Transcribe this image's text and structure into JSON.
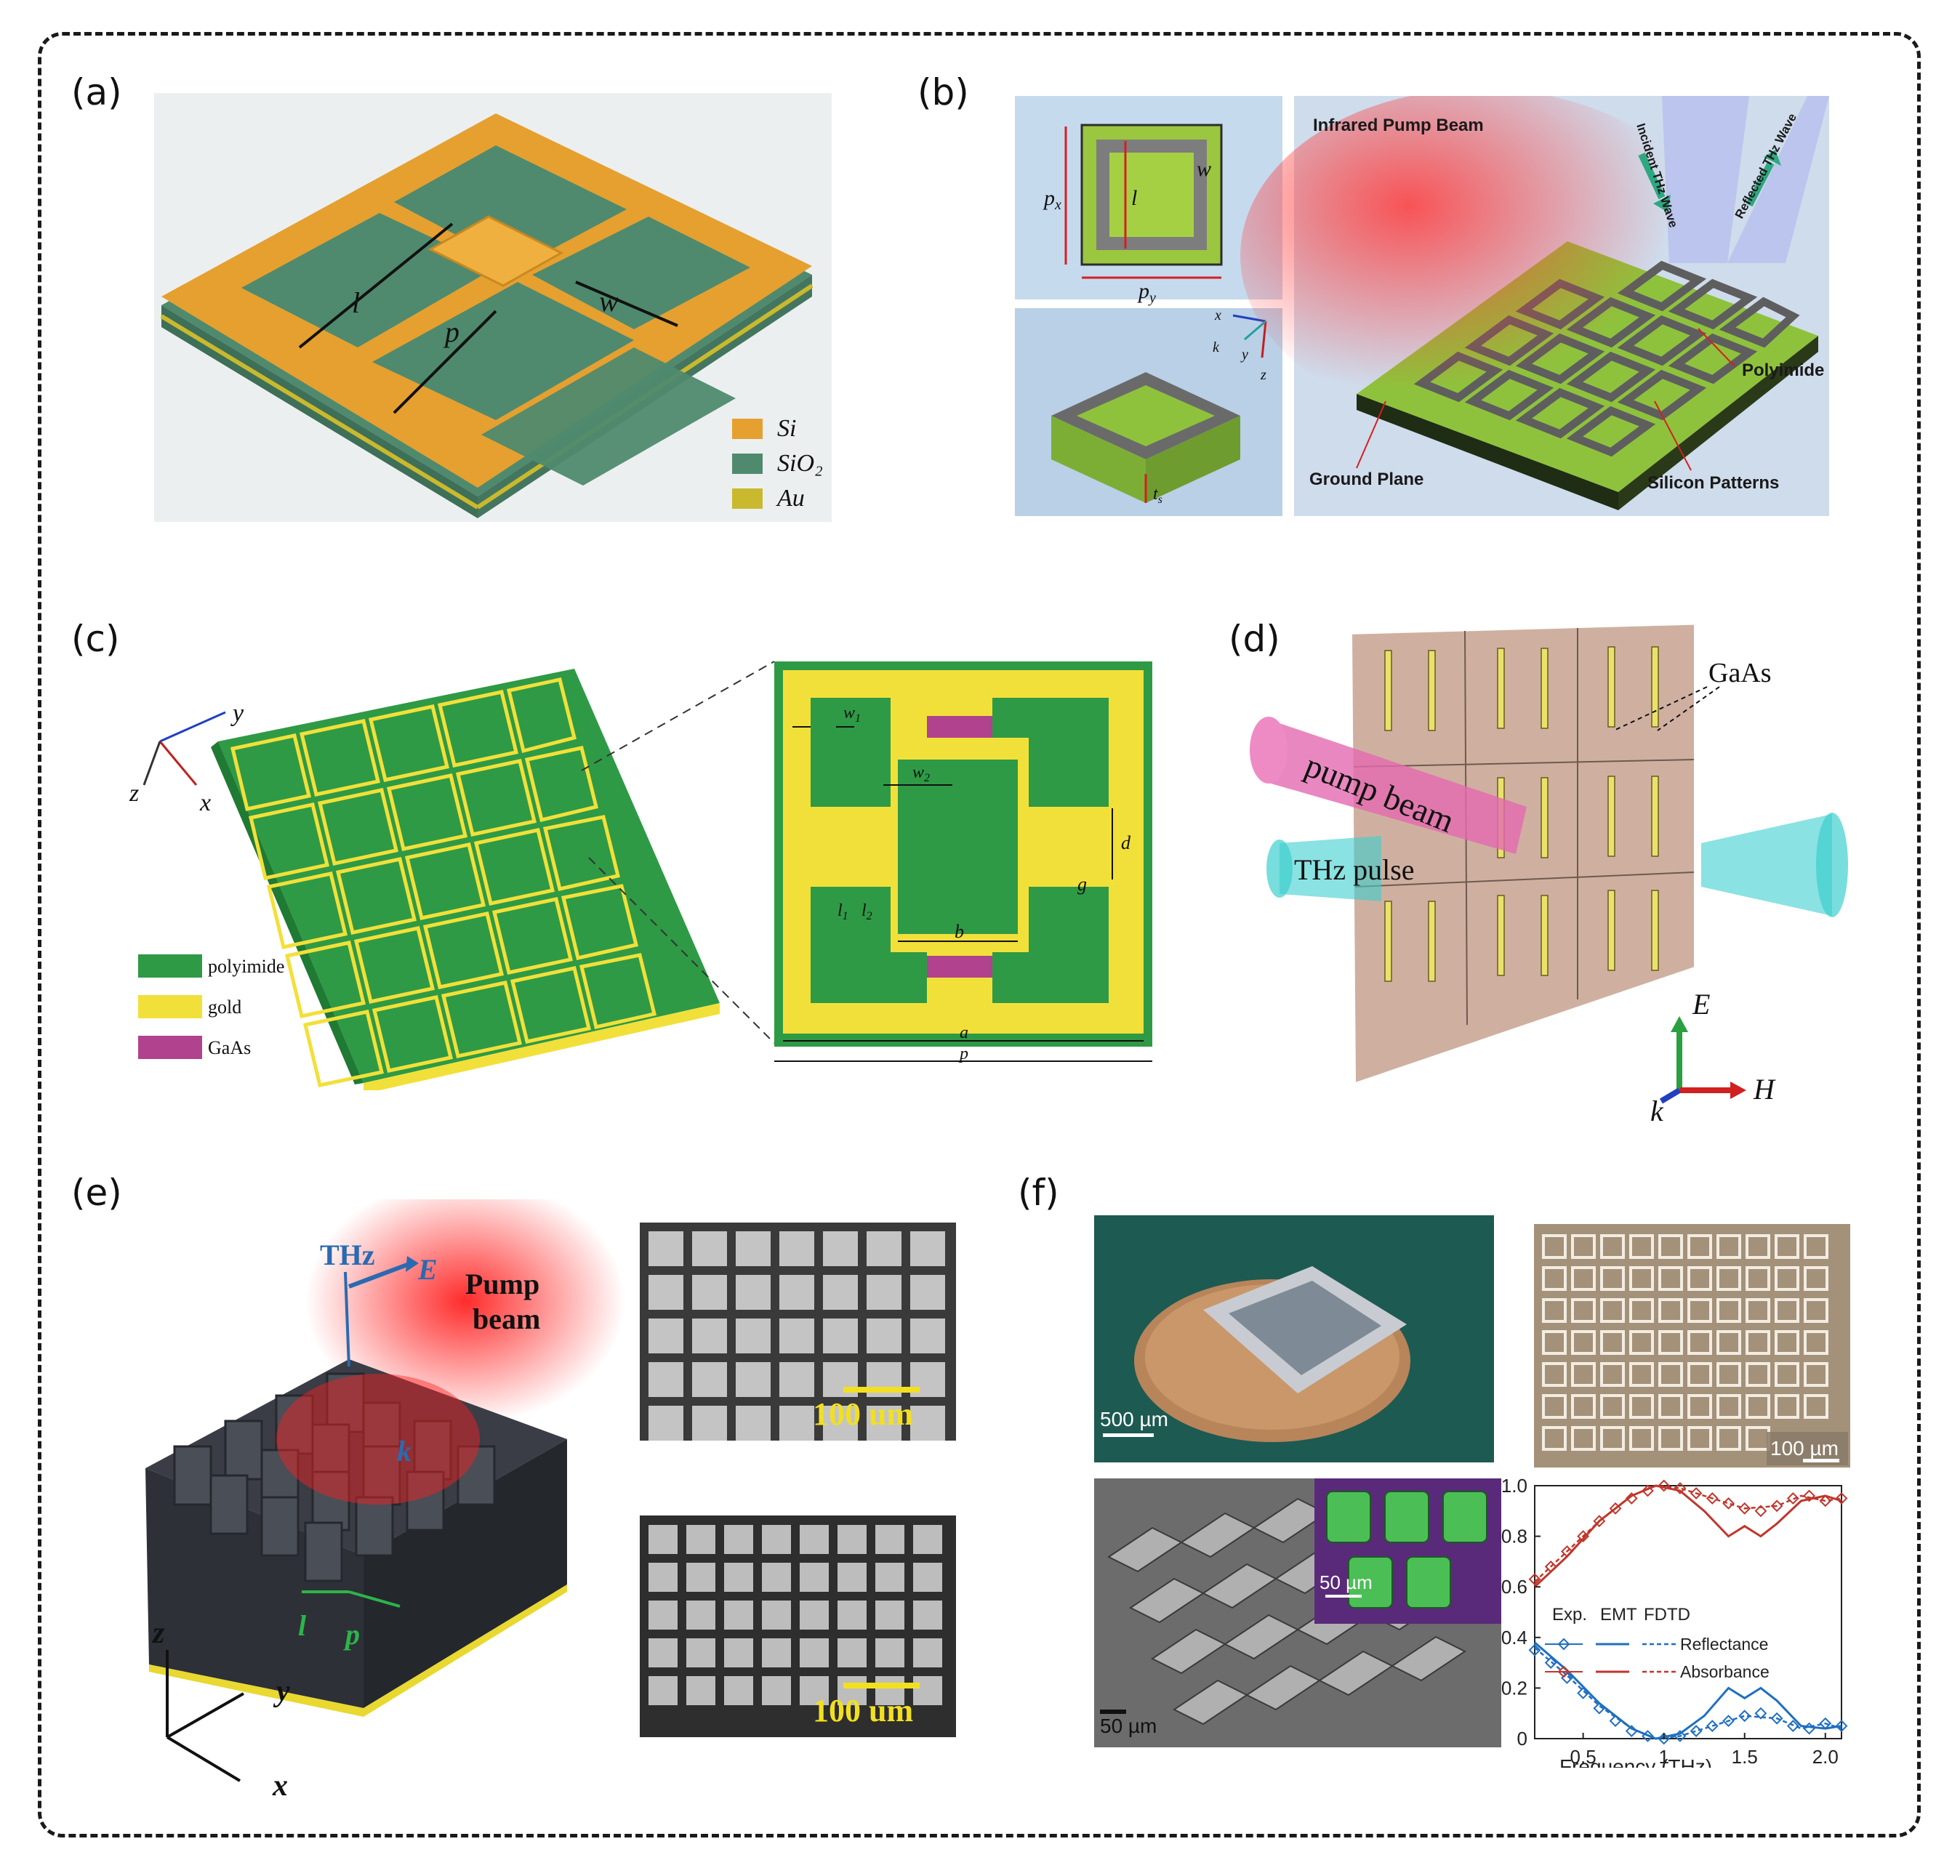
{
  "panels": {
    "a": {
      "label": "(a)",
      "dims": [
        "l",
        "p",
        "w"
      ],
      "legend": [
        {
          "name": "Si",
          "color": "#e5a030"
        },
        {
          "name": "SiO₂",
          "color": "#4f8a6e"
        },
        {
          "name": "Au",
          "color": "#c9b92e"
        }
      ]
    },
    "b": {
      "label": "(b)",
      "unit_dims": {
        "px": "p",
        "px_sub": "x",
        "py": "p",
        "py_sub": "y",
        "l": "l",
        "w": "w"
      },
      "axes": {
        "x": "x",
        "y": "y",
        "z": "z",
        "k": "k",
        "ts": "t",
        "ts_sub": "s"
      },
      "texts": {
        "pump": "Infrared Pump Beam",
        "incident": "Incident THz Wave",
        "reflected": "Reflected THz Wave",
        "polyimide": "Polyimide",
        "ground": "Ground Plane",
        "silicon": "Silicon Patterns"
      }
    },
    "c": {
      "label": "(c)",
      "axes": {
        "x": "x",
        "y": "y",
        "z": "z"
      },
      "legend": [
        {
          "name": "polyimide",
          "color": "#2e9a45"
        },
        {
          "name": "gold",
          "color": "#f2e03a"
        },
        {
          "name": "GaAs",
          "color": "#b0428e"
        }
      ],
      "dims": {
        "w1": "w",
        "w1_sub": "1",
        "w2": "w",
        "w2_sub": "2",
        "l1": "l",
        "l1_sub": "1",
        "l2": "l",
        "l2_sub": "2",
        "d": "d",
        "g": "g",
        "b": "b",
        "a": "a",
        "p": "p"
      }
    },
    "d": {
      "label": "(d)",
      "texts": {
        "gaas": "GaAs",
        "pump": "pump beam",
        "thz": "THz pulse",
        "E": "E",
        "H": "H",
        "k": "k"
      }
    },
    "e": {
      "label": "(e)",
      "texts": {
        "thz": "THz",
        "E": "E",
        "pump_line1": "Pump",
        "pump_line2": "beam",
        "k": "k",
        "l": "l",
        "p": "p",
        "z": "z",
        "y": "y",
        "x": "x"
      },
      "scalebars": [
        "100 um",
        "100 um"
      ]
    },
    "f": {
      "label": "(f)",
      "scalebars": [
        "500 µm",
        "100 µm",
        "50 µm",
        "50 µm"
      ],
      "chart_data": {
        "type": "line",
        "xlabel": "Frequency (THz)",
        "ylabel": "",
        "xlim": [
          0.2,
          2.1
        ],
        "ylim": [
          0,
          1.0
        ],
        "xticks": [
          "0.5",
          "1",
          "1.5",
          "2.0"
        ],
        "yticks": [
          "0",
          "0.2",
          "0.4",
          "0.6",
          "0.8",
          "1.0"
        ],
        "legend_header": [
          "Exp.",
          "EMT",
          "FDTD"
        ],
        "series": [
          {
            "name": "Reflectance",
            "color": "#1f6fc0",
            "emt": [
              [
                0.2,
                0.38
              ],
              [
                0.4,
                0.27
              ],
              [
                0.6,
                0.14
              ],
              [
                0.8,
                0.04
              ],
              [
                0.95,
                0.0
              ],
              [
                1.1,
                0.02
              ],
              [
                1.25,
                0.09
              ],
              [
                1.4,
                0.2
              ],
              [
                1.5,
                0.16
              ],
              [
                1.6,
                0.2
              ],
              [
                1.7,
                0.15
              ],
              [
                1.85,
                0.05
              ],
              [
                2.0,
                0.04
              ],
              [
                2.1,
                0.05
              ]
            ],
            "fdtd": [
              [
                0.2,
                0.36
              ],
              [
                0.4,
                0.25
              ],
              [
                0.6,
                0.13
              ],
              [
                0.8,
                0.04
              ],
              [
                0.95,
                0.0
              ],
              [
                1.1,
                0.01
              ],
              [
                1.3,
                0.05
              ],
              [
                1.5,
                0.09
              ],
              [
                1.7,
                0.08
              ],
              [
                1.85,
                0.04
              ],
              [
                2.0,
                0.06
              ],
              [
                2.1,
                0.04
              ]
            ],
            "exp": [
              [
                0.2,
                0.35
              ],
              [
                0.3,
                0.3
              ],
              [
                0.4,
                0.24
              ],
              [
                0.5,
                0.18
              ],
              [
                0.6,
                0.12
              ],
              [
                0.7,
                0.07
              ],
              [
                0.8,
                0.03
              ],
              [
                0.9,
                0.01
              ],
              [
                1.0,
                0.0
              ],
              [
                1.1,
                0.01
              ],
              [
                1.2,
                0.03
              ],
              [
                1.3,
                0.05
              ],
              [
                1.4,
                0.07
              ],
              [
                1.5,
                0.09
              ],
              [
                1.6,
                0.1
              ],
              [
                1.7,
                0.08
              ],
              [
                1.8,
                0.05
              ],
              [
                1.9,
                0.04
              ],
              [
                2.0,
                0.06
              ],
              [
                2.1,
                0.05
              ]
            ]
          },
          {
            "name": "Absorbance",
            "color": "#c0362c",
            "emt": [
              [
                0.2,
                0.6
              ],
              [
                0.4,
                0.72
              ],
              [
                0.6,
                0.86
              ],
              [
                0.8,
                0.96
              ],
              [
                0.95,
                1.0
              ],
              [
                1.1,
                0.98
              ],
              [
                1.25,
                0.9
              ],
              [
                1.4,
                0.8
              ],
              [
                1.5,
                0.84
              ],
              [
                1.6,
                0.8
              ],
              [
                1.7,
                0.85
              ],
              [
                1.85,
                0.94
              ],
              [
                2.0,
                0.96
              ],
              [
                2.1,
                0.94
              ]
            ],
            "fdtd": [
              [
                0.2,
                0.62
              ],
              [
                0.4,
                0.74
              ],
              [
                0.6,
                0.86
              ],
              [
                0.8,
                0.96
              ],
              [
                0.95,
                1.0
              ],
              [
                1.1,
                0.99
              ],
              [
                1.3,
                0.95
              ],
              [
                1.5,
                0.91
              ],
              [
                1.7,
                0.92
              ],
              [
                1.85,
                0.96
              ],
              [
                2.0,
                0.94
              ],
              [
                2.1,
                0.95
              ]
            ],
            "exp": [
              [
                0.2,
                0.63
              ],
              [
                0.3,
                0.68
              ],
              [
                0.4,
                0.74
              ],
              [
                0.5,
                0.8
              ],
              [
                0.6,
                0.86
              ],
              [
                0.7,
                0.91
              ],
              [
                0.8,
                0.95
              ],
              [
                0.9,
                0.98
              ],
              [
                1.0,
                1.0
              ],
              [
                1.1,
                0.99
              ],
              [
                1.2,
                0.97
              ],
              [
                1.3,
                0.95
              ],
              [
                1.4,
                0.93
              ],
              [
                1.5,
                0.91
              ],
              [
                1.6,
                0.9
              ],
              [
                1.7,
                0.92
              ],
              [
                1.8,
                0.95
              ],
              [
                1.9,
                0.96
              ],
              [
                2.0,
                0.94
              ],
              [
                2.1,
                0.95
              ]
            ]
          }
        ]
      }
    }
  }
}
